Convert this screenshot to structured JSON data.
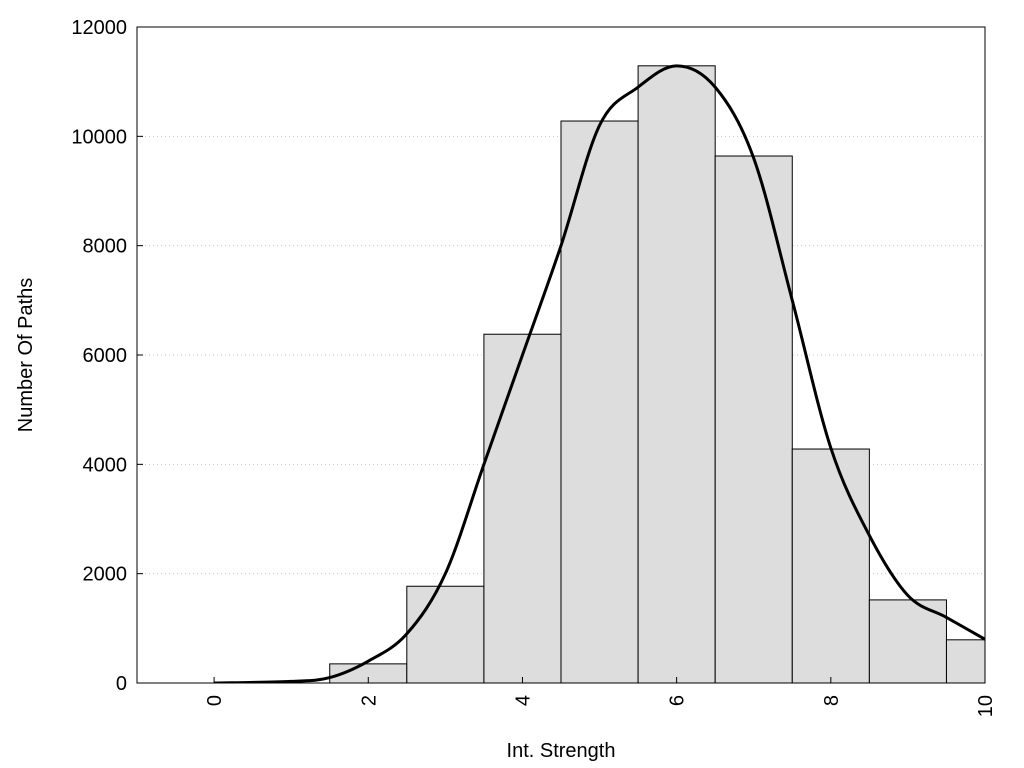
{
  "chart_data": {
    "type": "histogram",
    "x_label": "Int. Strength",
    "y_label": "Number Of Paths",
    "bins": [
      1.5,
      2.5,
      3.5,
      4.5,
      5.5,
      6.5,
      7.5,
      8.5,
      9.5,
      10.5
    ],
    "values": [
      350,
      1770,
      6380,
      10280,
      11290,
      9640,
      4280,
      1520,
      790
    ],
    "color": "#dddddd",
    "curve": {
      "color": "#000000",
      "x": [
        0,
        1,
        1.5,
        2,
        2.5,
        3,
        3.5,
        4,
        4.5,
        5,
        5.5,
        6,
        6.5,
        7,
        7.5,
        8,
        8.5,
        9,
        9.5,
        10
      ],
      "values": [
        0,
        30,
        100,
        400,
        900,
        2000,
        4000,
        6000,
        8000,
        10200,
        10900,
        11290,
        10900,
        9600,
        7000,
        4300,
        2700,
        1600,
        1200,
        800
      ]
    },
    "xlim": [
      -1,
      10
    ],
    "ylim": [
      0,
      12000
    ],
    "xticks": [
      0,
      2,
      4,
      6,
      8,
      10
    ],
    "yticks": [
      0,
      2000,
      4000,
      6000,
      8000,
      10000,
      12000
    ],
    "grid": true
  }
}
